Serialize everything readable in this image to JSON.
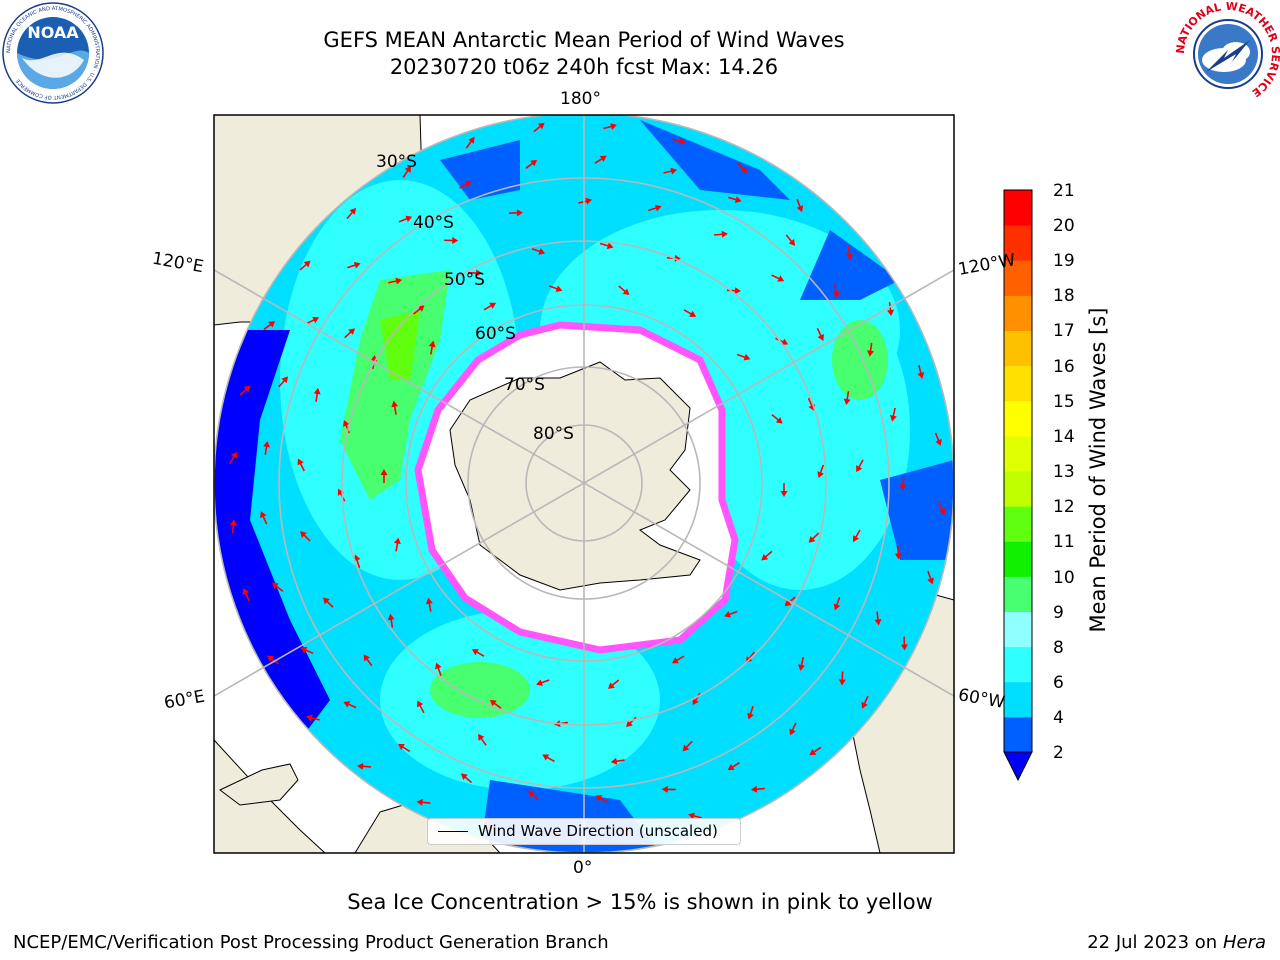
{
  "title": {
    "line1": "GEFS MEAN Antarctic Mean Period of Wind Waves",
    "line2": "20230720 t06z 240h fcst   Max: 14.26"
  },
  "map": {
    "projection": "south polar stereographic",
    "meridian_labels": [
      "180°",
      "120°E",
      "120°W",
      "60°E",
      "60°W",
      "0°"
    ],
    "parallel_labels": [
      "30°S",
      "40°S",
      "50°S",
      "60°S",
      "70°S",
      "80°S"
    ],
    "colors": {
      "land": "#efecdc",
      "ice": "#ffffff",
      "ice_edge": "#ff55ff",
      "grid": "#b8b8b8",
      "arrow": "#ff0000"
    }
  },
  "legend": {
    "label": "Wind Wave Direction (unscaled)"
  },
  "colorbar": {
    "label": "Mean Period of Wind Waves [s]",
    "ticks": [
      "2",
      "4",
      "6",
      "8",
      "9",
      "10",
      "11",
      "12",
      "13",
      "14",
      "15",
      "16",
      "17",
      "18",
      "19",
      "20",
      "21"
    ],
    "colors": [
      "#0060ff",
      "#00dfff",
      "#30ffff",
      "#90ffff",
      "#48ff70",
      "#10f000",
      "#60ff10",
      "#c0ff00",
      "#e0ff00",
      "#ffff00",
      "#ffe000",
      "#ffc000",
      "#ff9000",
      "#ff6000",
      "#ff3000",
      "#ff0000"
    ],
    "under_color": "#0000ff"
  },
  "footer": {
    "note": "Sea Ice Concentration > 15% is shown in pink to yellow",
    "credit": "NCEP/EMC/Verification Post Processing Product Generation Branch",
    "date": "22 Jul 2023 on ",
    "system": "Hera"
  },
  "logos": {
    "noaa_text": "NOAA",
    "noaa_ring": "NATIONAL OCEANIC AND ATMOSPHERIC ADMINISTRATION · U.S. DEPARTMENT OF COMMERCE",
    "nws_ring": "NATIONAL WEATHER SERVICE"
  }
}
